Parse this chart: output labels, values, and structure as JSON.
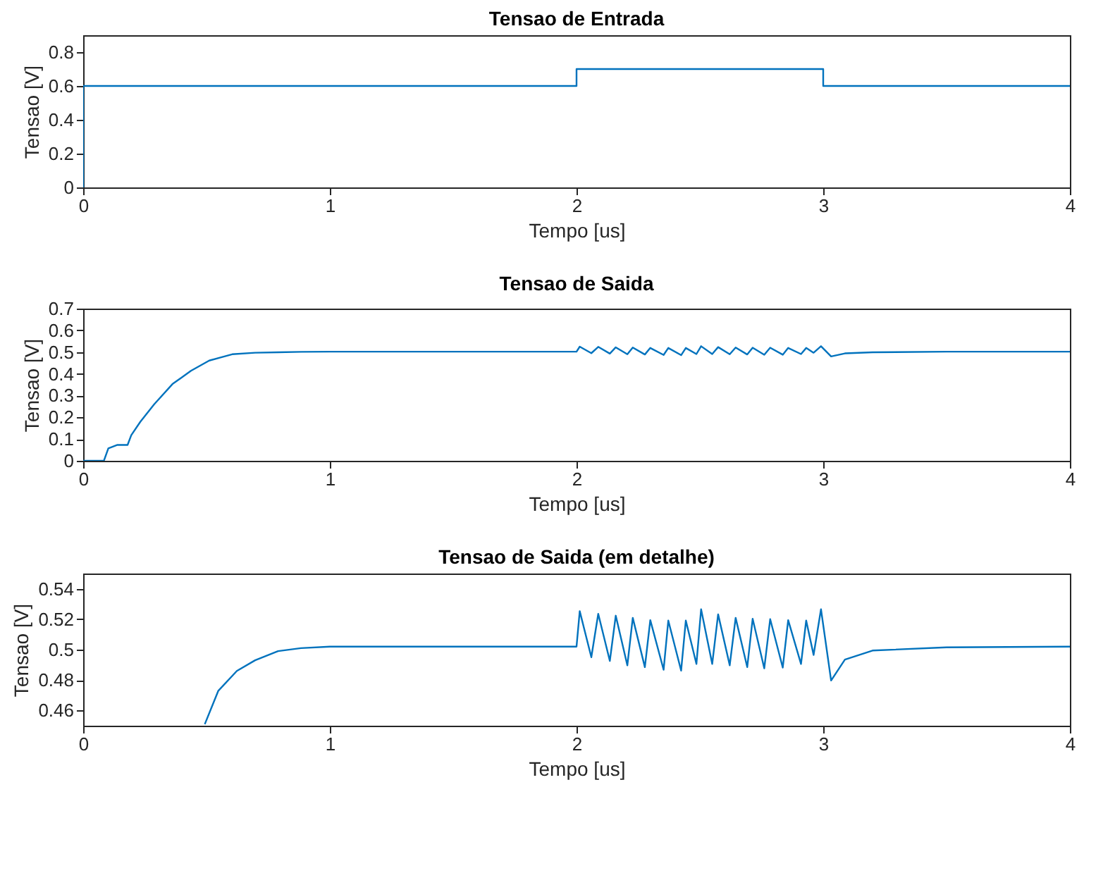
{
  "chart_data": [
    {
      "type": "line",
      "title": "Tensao de Entrada",
      "xlabel": "Tempo [us]",
      "ylabel": "Tensao [V]",
      "xlim": [
        0,
        4
      ],
      "xticks": [
        0,
        1,
        2,
        3,
        4
      ],
      "ylim": [
        0,
        0.9
      ],
      "yticks": [
        0,
        0.2,
        0.4,
        0.6,
        0.8
      ],
      "grid": false,
      "series": [
        {
          "color": "#0072bd",
          "x": [
            0,
            0,
            2,
            2,
            3,
            3,
            4
          ],
          "values": [
            0,
            0.6,
            0.6,
            0.7,
            0.7,
            0.6,
            0.6
          ]
        }
      ]
    },
    {
      "type": "line",
      "title": "Tensao de Saida",
      "xlabel": "Tempo [us]",
      "ylabel": "Tensao [V]",
      "xlim": [
        0,
        4
      ],
      "xticks": [
        0,
        1,
        2,
        3,
        4
      ],
      "ylim": [
        0,
        0.7
      ],
      "yticks": [
        0,
        0.1,
        0.2,
        0.3,
        0.4,
        0.5,
        0.6,
        0.7
      ],
      "grid": false,
      "series": [
        {
          "color": "#0072bd",
          "x": [
            0,
            0.084,
            0.102,
            0.139,
            0.18,
            0.195,
            0.232,
            0.288,
            0.362,
            0.437,
            0.511,
            0.604,
            0.697,
            0.79,
            0.883,
            1.0,
            1.5,
            2.0,
            2.013,
            2.06,
            2.088,
            2.135,
            2.159,
            2.206,
            2.228,
            2.277,
            2.299,
            2.353,
            2.372,
            2.424,
            2.443,
            2.486,
            2.505,
            2.55,
            2.574,
            2.621,
            2.645,
            2.692,
            2.714,
            2.761,
            2.785,
            2.836,
            2.858,
            2.91,
            2.931,
            2.961,
            2.991,
            3.032,
            3.088,
            3.2,
            3.5,
            4.0
          ],
          "values": [
            0,
            0,
            0.057,
            0.073,
            0.073,
            0.118,
            0.18,
            0.26,
            0.353,
            0.414,
            0.461,
            0.49,
            0.497,
            0.499,
            0.501,
            0.502,
            0.502,
            0.502,
            0.525,
            0.495,
            0.524,
            0.493,
            0.522,
            0.49,
            0.521,
            0.489,
            0.519,
            0.487,
            0.519,
            0.486,
            0.519,
            0.491,
            0.527,
            0.491,
            0.523,
            0.49,
            0.521,
            0.489,
            0.52,
            0.488,
            0.52,
            0.488,
            0.519,
            0.491,
            0.519,
            0.497,
            0.527,
            0.48,
            0.494,
            0.499,
            0.502,
            0.502
          ]
        }
      ]
    },
    {
      "type": "line",
      "title": "Tensao de Saida (em detalhe)",
      "xlabel": "Tempo [us]",
      "ylabel": "Tensao [V]",
      "xlim": [
        0,
        4
      ],
      "xticks": [
        0,
        1,
        2,
        3,
        4
      ],
      "ylim": [
        0.45,
        0.55
      ],
      "yticks": [
        0.46,
        0.48,
        0.5,
        0.52,
        0.54
      ],
      "grid": false,
      "series": [
        {
          "color": "#0072bd",
          "x": [
            0.493,
            0.548,
            0.623,
            0.697,
            0.79,
            0.883,
            1.0,
            1.5,
            2.0,
            2.013,
            2.06,
            2.088,
            2.135,
            2.159,
            2.206,
            2.228,
            2.277,
            2.299,
            2.353,
            2.372,
            2.424,
            2.443,
            2.486,
            2.505,
            2.55,
            2.574,
            2.621,
            2.645,
            2.692,
            2.714,
            2.761,
            2.785,
            2.836,
            2.858,
            2.91,
            2.931,
            2.961,
            2.991,
            3.032,
            3.088,
            3.2,
            3.5,
            4.0
          ],
          "values": [
            0.451,
            0.473,
            0.486,
            0.493,
            0.499,
            0.501,
            0.502,
            0.502,
            0.502,
            0.5253,
            0.495,
            0.5235,
            0.4926,
            0.5223,
            0.4897,
            0.5209,
            0.4885,
            0.5194,
            0.4868,
            0.5191,
            0.4862,
            0.5191,
            0.4906,
            0.5265,
            0.4906,
            0.5232,
            0.4897,
            0.5209,
            0.4885,
            0.5203,
            0.4877,
            0.52,
            0.4882,
            0.5194,
            0.4906,
            0.5191,
            0.4965,
            0.5265,
            0.4797,
            0.4935,
            0.4994,
            0.5015,
            0.502
          ]
        }
      ]
    }
  ]
}
